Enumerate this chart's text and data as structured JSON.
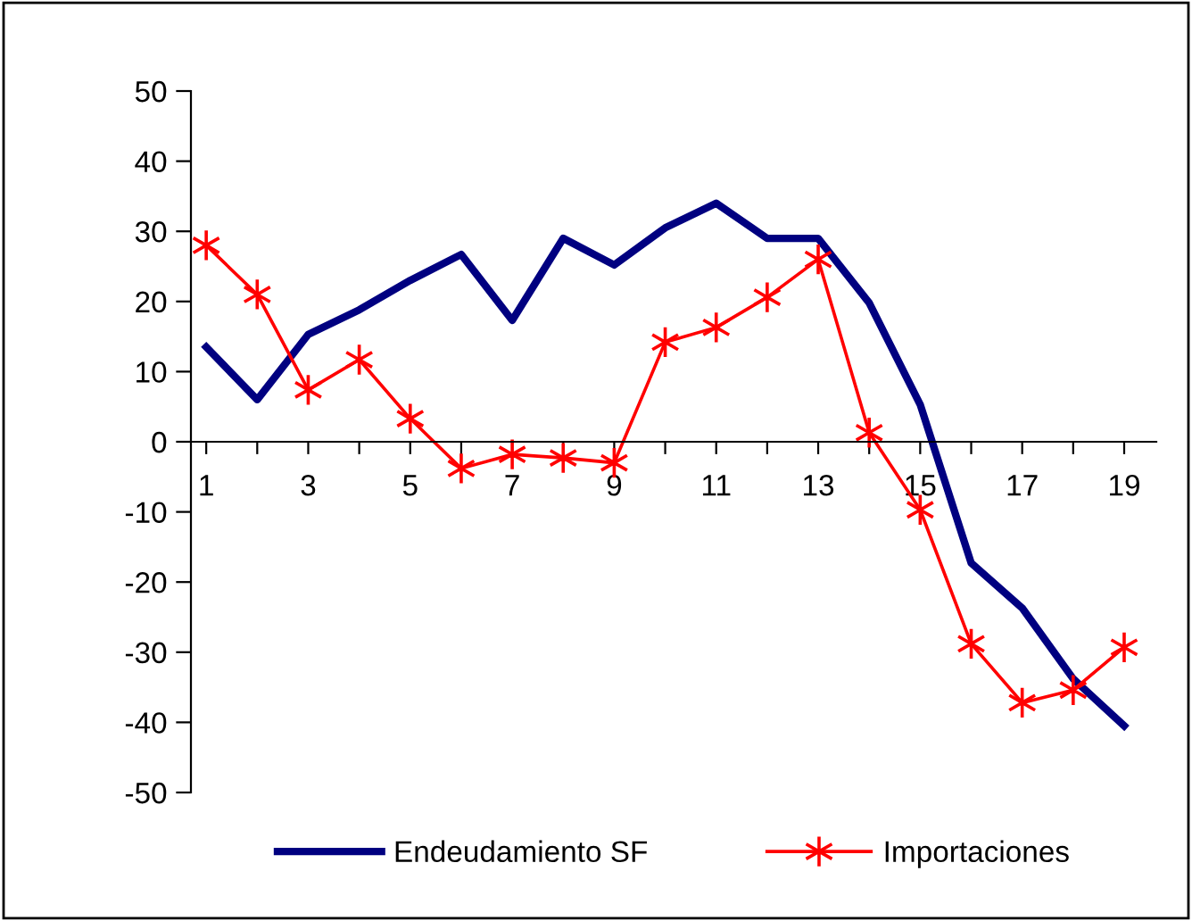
{
  "chart_data": {
    "type": "line",
    "categories": [
      "1",
      null,
      "3",
      null,
      "5",
      null,
      "7",
      null,
      "9",
      null,
      "11",
      null,
      "13",
      null,
      "15",
      null,
      "17",
      null,
      "19"
    ],
    "series": [
      {
        "name": "Endeudamiento SF",
        "color": "#000080",
        "marker": "none",
        "values": [
          13.5,
          6,
          15.3,
          18.8,
          23,
          26.7,
          17.3,
          29,
          25.2,
          30.5,
          34,
          29,
          29,
          19.8,
          5.3,
          -17.3,
          -23.7,
          -33.8,
          -40.5
        ]
      },
      {
        "name": "Importaciones",
        "color": "#ff0000",
        "marker": "cross",
        "values": [
          28,
          21,
          7.4,
          11.7,
          3.3,
          -3.8,
          -1.8,
          -2.3,
          -3,
          14.2,
          16.3,
          20.6,
          26,
          1.3,
          -9.7,
          -28.8,
          -37.2,
          -35.4,
          -29.3
        ]
      }
    ],
    "ylim": [
      -50,
      50
    ],
    "yticks": [
      -50,
      -40,
      -30,
      -20,
      -10,
      0,
      10,
      20,
      30,
      40,
      50
    ],
    "grid": false,
    "legend": "bottom"
  }
}
